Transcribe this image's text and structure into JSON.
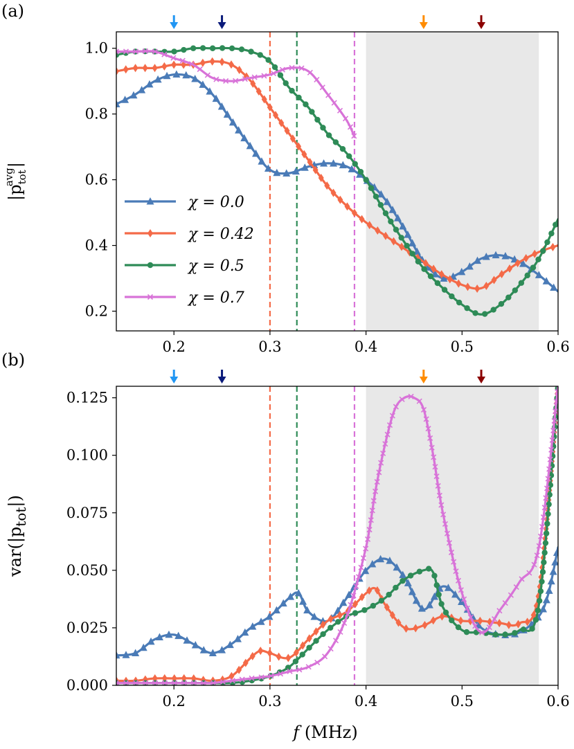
{
  "colors": {
    "chi_0.0": "#4a7bb7",
    "chi_0.42": "#f46a48",
    "chi_0.5": "#2e8b57",
    "chi_0.7": "#d873d8",
    "arrow_light_blue": "#2196f3",
    "arrow_dark_blue": "#0a1a7a",
    "arrow_orange": "#ff8c00",
    "arrow_dark_red": "#8b0000",
    "shaded_region": "#e8e8e8"
  },
  "shared": {
    "xlabel": "f (MHz)",
    "xlim": [
      0.14,
      0.6
    ],
    "xticks": [
      0.2,
      0.3,
      0.4,
      0.5,
      0.6
    ],
    "xtick_labels": [
      "0.2",
      "0.3",
      "0.4",
      "0.5",
      "0.6"
    ],
    "shaded_band": [
      0.4,
      0.58
    ],
    "vertical_dashed_lines": [
      {
        "x": 0.3,
        "color_key": "chi_0.42"
      },
      {
        "x": 0.328,
        "color_key": "chi_0.5"
      },
      {
        "x": 0.388,
        "color_key": "chi_0.7"
      }
    ],
    "arrows": [
      {
        "x": 0.2,
        "color_key": "arrow_light_blue"
      },
      {
        "x": 0.25,
        "color_key": "arrow_dark_blue"
      },
      {
        "x": 0.46,
        "color_key": "arrow_orange"
      },
      {
        "x": 0.52,
        "color_key": "arrow_dark_red"
      }
    ]
  },
  "chart_data": [
    {
      "type": "line",
      "panel": "(a)",
      "ylabel": "|p_tot^avg|",
      "ylim": [
        0.14,
        1.05
      ],
      "yticks": [
        0.2,
        0.4,
        0.6,
        0.8,
        1.0
      ],
      "ytick_labels": [
        "0.2",
        "0.4",
        "0.6",
        "0.8",
        "1.0"
      ],
      "legend": {
        "placement": "lower-left",
        "entries": [
          "χ = 0.0",
          "χ = 0.42",
          "χ = 0.5",
          "χ = 0.7"
        ]
      },
      "series": [
        {
          "name": "χ = 0.0",
          "color_key": "chi_0.0",
          "marker": "triangle",
          "x": [
            0.14,
            0.16,
            0.18,
            0.2,
            0.22,
            0.24,
            0.26,
            0.28,
            0.3,
            0.32,
            0.34,
            0.36,
            0.38,
            0.4,
            0.42,
            0.44,
            0.46,
            0.48,
            0.5,
            0.52,
            0.54,
            0.56,
            0.58,
            0.6
          ],
          "y": [
            0.83,
            0.86,
            0.9,
            0.92,
            0.91,
            0.86,
            0.78,
            0.7,
            0.63,
            0.62,
            0.64,
            0.65,
            0.64,
            0.6,
            0.54,
            0.45,
            0.35,
            0.3,
            0.32,
            0.36,
            0.37,
            0.35,
            0.31,
            0.26
          ]
        },
        {
          "name": "χ = 0.42",
          "color_key": "chi_0.42",
          "marker": "diamond",
          "x": [
            0.14,
            0.16,
            0.18,
            0.2,
            0.22,
            0.24,
            0.26,
            0.28,
            0.3,
            0.32,
            0.34,
            0.36,
            0.38,
            0.4,
            0.42,
            0.44,
            0.46,
            0.48,
            0.5,
            0.52,
            0.54,
            0.56,
            0.58,
            0.6
          ],
          "y": [
            0.93,
            0.94,
            0.94,
            0.95,
            0.95,
            0.96,
            0.95,
            0.9,
            0.82,
            0.74,
            0.66,
            0.58,
            0.52,
            0.47,
            0.43,
            0.39,
            0.35,
            0.31,
            0.28,
            0.27,
            0.31,
            0.35,
            0.38,
            0.4
          ]
        },
        {
          "name": "χ = 0.5",
          "color_key": "chi_0.5",
          "marker": "circle",
          "x": [
            0.14,
            0.16,
            0.18,
            0.2,
            0.22,
            0.24,
            0.26,
            0.28,
            0.3,
            0.32,
            0.34,
            0.36,
            0.38,
            0.4,
            0.42,
            0.44,
            0.46,
            0.48,
            0.5,
            0.52,
            0.54,
            0.56,
            0.58,
            0.6
          ],
          "y": [
            0.98,
            0.99,
            0.99,
            0.99,
            1.0,
            1.0,
            1.0,
            0.99,
            0.96,
            0.88,
            0.82,
            0.74,
            0.68,
            0.6,
            0.5,
            0.41,
            0.33,
            0.27,
            0.22,
            0.19,
            0.22,
            0.28,
            0.36,
            0.48
          ]
        },
        {
          "name": "χ = 0.7",
          "color_key": "chi_0.7",
          "marker": "x",
          "x": [
            0.14,
            0.16,
            0.18,
            0.2,
            0.22,
            0.24,
            0.26,
            0.28,
            0.3,
            0.32,
            0.34,
            0.36,
            0.38,
            0.388
          ],
          "y": [
            0.99,
            0.99,
            0.99,
            0.97,
            0.95,
            0.91,
            0.9,
            0.91,
            0.92,
            0.94,
            0.93,
            0.86,
            0.78,
            0.73
          ]
        }
      ]
    },
    {
      "type": "line",
      "panel": "(b)",
      "ylabel": "var(|p_tot|)",
      "ylim": [
        0.0,
        0.13
      ],
      "yticks": [
        0.0,
        0.025,
        0.05,
        0.075,
        0.1,
        0.125
      ],
      "ytick_labels": [
        "0.000",
        "0.025",
        "0.050",
        "0.075",
        "0.100",
        "0.125"
      ],
      "series": [
        {
          "name": "χ = 0.0",
          "color_key": "chi_0.0",
          "marker": "triangle",
          "x": [
            0.14,
            0.16,
            0.18,
            0.2,
            0.22,
            0.24,
            0.26,
            0.28,
            0.3,
            0.32,
            0.33,
            0.34,
            0.36,
            0.38,
            0.4,
            0.42,
            0.44,
            0.46,
            0.48,
            0.5,
            0.52,
            0.54,
            0.56,
            0.58,
            0.59,
            0.6
          ],
          "y": [
            0.013,
            0.014,
            0.02,
            0.022,
            0.018,
            0.014,
            0.018,
            0.025,
            0.03,
            0.038,
            0.04,
            0.032,
            0.028,
            0.038,
            0.05,
            0.055,
            0.047,
            0.033,
            0.043,
            0.036,
            0.025,
            0.022,
            0.023,
            0.03,
            0.04,
            0.06
          ]
        },
        {
          "name": "χ = 0.42",
          "color_key": "chi_0.42",
          "marker": "diamond",
          "x": [
            0.14,
            0.16,
            0.18,
            0.2,
            0.22,
            0.24,
            0.26,
            0.28,
            0.29,
            0.3,
            0.32,
            0.34,
            0.36,
            0.38,
            0.4,
            0.41,
            0.42,
            0.44,
            0.46,
            0.48,
            0.5,
            0.52,
            0.54,
            0.56,
            0.58,
            0.6
          ],
          "y": [
            0.002,
            0.002,
            0.003,
            0.003,
            0.003,
            0.002,
            0.004,
            0.012,
            0.015,
            0.014,
            0.012,
            0.02,
            0.028,
            0.032,
            0.04,
            0.042,
            0.035,
            0.025,
            0.026,
            0.03,
            0.028,
            0.028,
            0.027,
            0.027,
            0.04,
            0.13
          ]
        },
        {
          "name": "χ = 0.5",
          "color_key": "chi_0.5",
          "marker": "circle",
          "x": [
            0.14,
            0.16,
            0.18,
            0.2,
            0.22,
            0.24,
            0.26,
            0.28,
            0.3,
            0.32,
            0.34,
            0.36,
            0.38,
            0.4,
            0.42,
            0.44,
            0.46,
            0.47,
            0.48,
            0.5,
            0.52,
            0.54,
            0.56,
            0.58,
            0.6
          ],
          "y": [
            0.001,
            0.001,
            0.001,
            0.001,
            0.001,
            0.001,
            0.001,
            0.002,
            0.004,
            0.008,
            0.016,
            0.024,
            0.03,
            0.033,
            0.038,
            0.046,
            0.05,
            0.049,
            0.034,
            0.024,
            0.023,
            0.022,
            0.024,
            0.035,
            0.13
          ]
        },
        {
          "name": "χ = 0.7",
          "color_key": "chi_0.7",
          "marker": "x",
          "x": [
            0.14,
            0.16,
            0.18,
            0.2,
            0.22,
            0.24,
            0.26,
            0.28,
            0.3,
            0.32,
            0.34,
            0.36,
            0.38,
            0.4,
            0.41,
            0.42,
            0.43,
            0.44,
            0.45,
            0.46,
            0.47,
            0.48,
            0.5,
            0.52,
            0.54,
            0.56,
            0.58,
            0.6
          ],
          "y": [
            0.001,
            0.001,
            0.001,
            0.001,
            0.001,
            0.001,
            0.002,
            0.003,
            0.004,
            0.006,
            0.008,
            0.014,
            0.03,
            0.06,
            0.085,
            0.105,
            0.12,
            0.125,
            0.125,
            0.12,
            0.1,
            0.075,
            0.04,
            0.023,
            0.033,
            0.045,
            0.06,
            0.13
          ]
        }
      ]
    }
  ]
}
